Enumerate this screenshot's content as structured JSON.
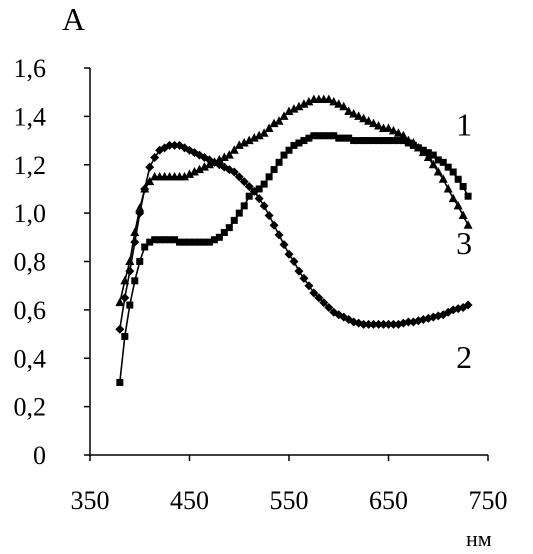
{
  "chart_data": {
    "type": "line",
    "ylabel": "А",
    "xlabel": "нм",
    "xlim": [
      350,
      750
    ],
    "ylim": [
      0,
      1.6
    ],
    "xticks": [
      350,
      450,
      550,
      650,
      750
    ],
    "yticks": [
      0,
      0.2,
      0.4,
      0.6,
      0.8,
      1.0,
      1.2,
      1.4,
      1.6
    ],
    "xtick_labels": [
      "350",
      "450",
      "550",
      "650",
      "750"
    ],
    "ytick_labels": [
      "0",
      "0,2",
      "0,4",
      "0,6",
      "0,8",
      "1,0",
      "1,2",
      "1,4",
      "1,6"
    ],
    "grid": false,
    "series": [
      {
        "name": "1",
        "marker": "triangle",
        "x": [
          380,
          385,
          390,
          395,
          400,
          405,
          410,
          415,
          420,
          425,
          430,
          435,
          440,
          445,
          450,
          455,
          460,
          465,
          470,
          475,
          480,
          485,
          490,
          495,
          500,
          505,
          510,
          515,
          520,
          525,
          530,
          535,
          540,
          545,
          550,
          555,
          560,
          565,
          570,
          575,
          580,
          585,
          590,
          595,
          600,
          605,
          610,
          615,
          620,
          625,
          630,
          635,
          640,
          645,
          650,
          655,
          660,
          665,
          670,
          675,
          680,
          685,
          690,
          695,
          700,
          705,
          710,
          715,
          720,
          725,
          730
        ],
        "y": [
          0.63,
          0.72,
          0.8,
          0.92,
          1.02,
          1.1,
          1.13,
          1.15,
          1.15,
          1.15,
          1.15,
          1.15,
          1.15,
          1.15,
          1.16,
          1.17,
          1.18,
          1.19,
          1.2,
          1.21,
          1.22,
          1.23,
          1.24,
          1.26,
          1.28,
          1.29,
          1.3,
          1.31,
          1.32,
          1.33,
          1.35,
          1.37,
          1.38,
          1.4,
          1.42,
          1.43,
          1.44,
          1.45,
          1.46,
          1.47,
          1.47,
          1.47,
          1.47,
          1.46,
          1.45,
          1.44,
          1.42,
          1.41,
          1.4,
          1.39,
          1.38,
          1.37,
          1.36,
          1.35,
          1.35,
          1.34,
          1.33,
          1.32,
          1.3,
          1.29,
          1.27,
          1.25,
          1.23,
          1.2,
          1.17,
          1.14,
          1.1,
          1.06,
          1.03,
          0.99,
          0.95
        ]
      },
      {
        "name": "2",
        "marker": "diamond",
        "x": [
          380,
          385,
          390,
          395,
          400,
          405,
          410,
          415,
          420,
          425,
          430,
          435,
          440,
          445,
          450,
          455,
          460,
          465,
          470,
          475,
          480,
          485,
          490,
          495,
          500,
          505,
          510,
          515,
          520,
          525,
          530,
          535,
          540,
          545,
          550,
          555,
          560,
          565,
          570,
          575,
          580,
          585,
          590,
          595,
          600,
          605,
          610,
          615,
          620,
          625,
          630,
          635,
          640,
          645,
          650,
          655,
          660,
          665,
          670,
          675,
          680,
          685,
          690,
          695,
          700,
          705,
          710,
          715,
          720,
          725,
          730
        ],
        "y": [
          0.52,
          0.65,
          0.76,
          0.88,
          1.0,
          1.1,
          1.19,
          1.23,
          1.26,
          1.27,
          1.28,
          1.28,
          1.28,
          1.27,
          1.26,
          1.25,
          1.24,
          1.23,
          1.22,
          1.21,
          1.2,
          1.19,
          1.18,
          1.17,
          1.15,
          1.13,
          1.11,
          1.09,
          1.06,
          1.03,
          0.99,
          0.95,
          0.91,
          0.87,
          0.83,
          0.8,
          0.76,
          0.73,
          0.7,
          0.67,
          0.65,
          0.63,
          0.61,
          0.59,
          0.58,
          0.57,
          0.56,
          0.55,
          0.545,
          0.54,
          0.54,
          0.54,
          0.54,
          0.54,
          0.54,
          0.54,
          0.54,
          0.545,
          0.55,
          0.55,
          0.555,
          0.56,
          0.565,
          0.57,
          0.575,
          0.58,
          0.59,
          0.6,
          0.605,
          0.61,
          0.62
        ]
      },
      {
        "name": "3",
        "marker": "square",
        "x": [
          380,
          385,
          390,
          395,
          400,
          405,
          410,
          415,
          420,
          425,
          430,
          435,
          440,
          445,
          450,
          455,
          460,
          465,
          470,
          475,
          480,
          485,
          490,
          495,
          500,
          505,
          510,
          515,
          520,
          525,
          530,
          535,
          540,
          545,
          550,
          555,
          560,
          565,
          570,
          575,
          580,
          585,
          590,
          595,
          600,
          605,
          610,
          615,
          620,
          625,
          630,
          635,
          640,
          645,
          650,
          655,
          660,
          665,
          670,
          675,
          680,
          685,
          690,
          695,
          700,
          705,
          710,
          715,
          720,
          725,
          730
        ],
        "y": [
          0.3,
          0.49,
          0.62,
          0.72,
          0.8,
          0.86,
          0.88,
          0.89,
          0.89,
          0.89,
          0.89,
          0.89,
          0.88,
          0.88,
          0.88,
          0.88,
          0.88,
          0.88,
          0.88,
          0.89,
          0.9,
          0.92,
          0.94,
          0.97,
          1.0,
          1.03,
          1.07,
          1.09,
          1.1,
          1.12,
          1.15,
          1.18,
          1.21,
          1.24,
          1.26,
          1.28,
          1.29,
          1.3,
          1.31,
          1.32,
          1.32,
          1.32,
          1.32,
          1.32,
          1.31,
          1.31,
          1.31,
          1.3,
          1.3,
          1.3,
          1.3,
          1.3,
          1.3,
          1.3,
          1.3,
          1.3,
          1.3,
          1.3,
          1.29,
          1.28,
          1.27,
          1.26,
          1.25,
          1.24,
          1.22,
          1.21,
          1.19,
          1.17,
          1.14,
          1.11,
          1.07
        ]
      }
    ],
    "curve_labels": [
      {
        "text": "1",
        "x": 726,
        "y": 1.32
      },
      {
        "text": "3",
        "x": 726,
        "y": 0.83
      },
      {
        "text": "2",
        "x": 726,
        "y": 0.36
      }
    ],
    "colors": {
      "line": "#000000",
      "marker": "#000000",
      "background": "#ffffff"
    }
  }
}
